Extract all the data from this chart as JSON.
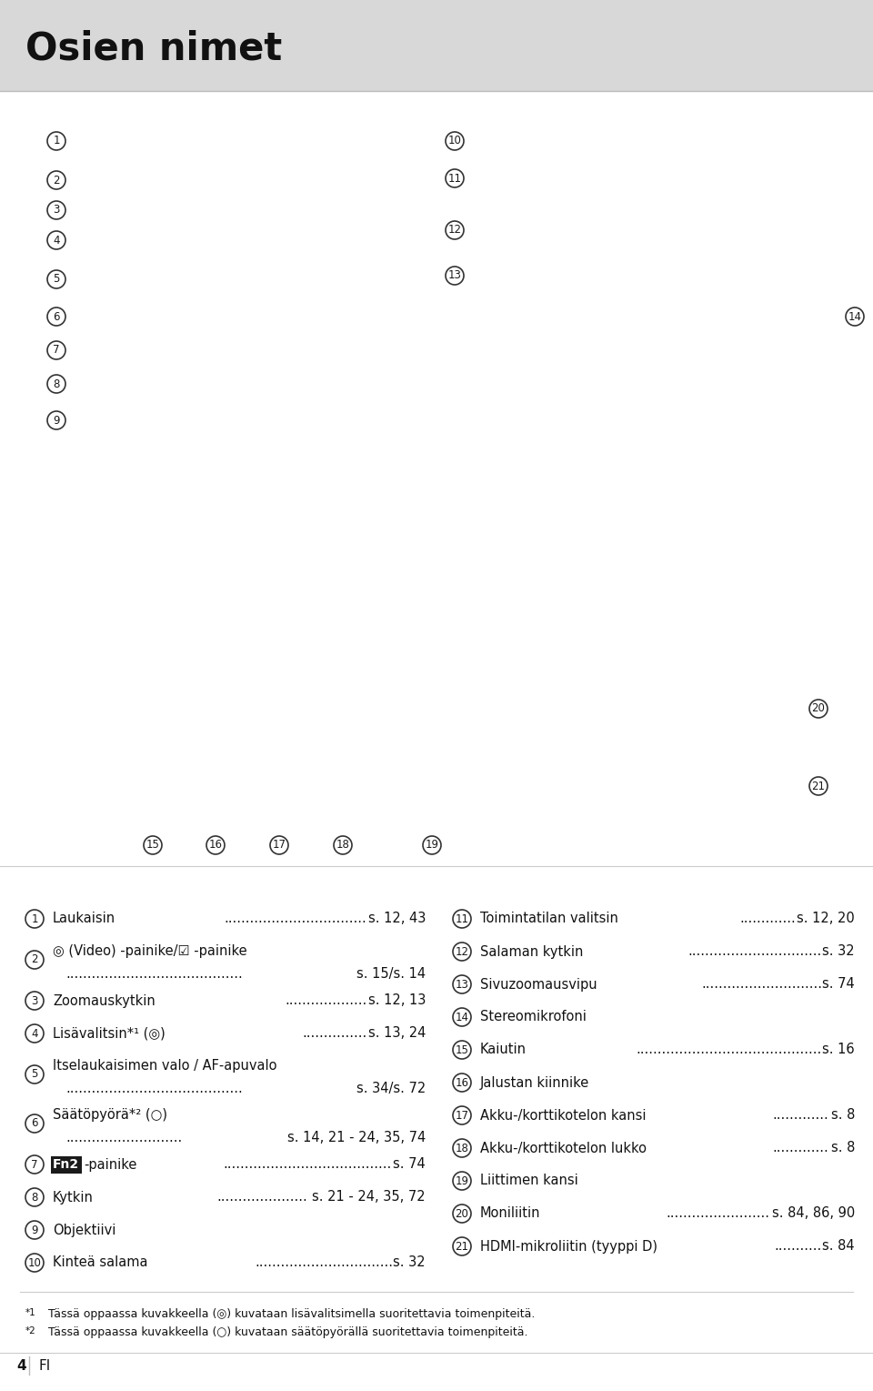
{
  "title": "Osien nimet",
  "title_bg": "#d8d8d8",
  "bg_color": "#ffffff",
  "page_number": "4",
  "page_lang": "FI",
  "left_items": [
    {
      "num": "1",
      "line1": "Laukaisin",
      "dots1": ".................................",
      "page1": "s. 12, 43",
      "line2": null,
      "dots2": null,
      "page2": null
    },
    {
      "num": "2",
      "line1": "◎ (Video) -painike/☑ -painike",
      "dots1": null,
      "page1": null,
      "line2": ".........................................",
      "dots2": null,
      "page2": "s. 15/s. 14"
    },
    {
      "num": "3",
      "line1": "Zoomauskytkin",
      "dots1": "...................",
      "page1": "s. 12, 13",
      "line2": null,
      "dots2": null,
      "page2": null
    },
    {
      "num": "4",
      "line1": "Lisävalitsin*¹ (◎)",
      "dots1": "...............",
      "page1": "s. 13, 24",
      "line2": null,
      "dots2": null,
      "page2": null
    },
    {
      "num": "5",
      "line1": "Itselaukaisimen valo / AF-apuvalo",
      "dots1": null,
      "page1": null,
      "line2": ".........................................",
      "dots2": null,
      "page2": "s. 34/s. 72"
    },
    {
      "num": "6",
      "line1": "Säätöpyörä*² (○)",
      "dots1": null,
      "page1": null,
      "line2": "...........................",
      "dots2": null,
      "page2": "s. 14, 21 - 24, 35, 74"
    },
    {
      "num": "7",
      "line1": "Fn2-painike",
      "dots1": ".......................................",
      "page1": "s. 74",
      "line2": null,
      "dots2": null,
      "page2": null,
      "fn2": true
    },
    {
      "num": "8",
      "line1": "Kytkin",
      "dots1": ".....................",
      "page1": "s. 21 - 24, 35, 72",
      "line2": null,
      "dots2": null,
      "page2": null
    },
    {
      "num": "9",
      "line1": "Objektiivi",
      "dots1": null,
      "page1": null,
      "line2": null,
      "dots2": null,
      "page2": null
    },
    {
      "num": "10",
      "line1": "Kinteä salama",
      "dots1": "................................",
      "page1": "s. 32",
      "line2": null,
      "dots2": null,
      "page2": null
    }
  ],
  "right_items": [
    {
      "num": "11",
      "line1": "Toimintatilan valitsin",
      "dots1": ".............",
      "page1": "s. 12, 20"
    },
    {
      "num": "12",
      "line1": "Salaman kytkin",
      "dots1": "...............................",
      "page1": "s. 32"
    },
    {
      "num": "13",
      "line1": "Sivuzoomausvipu",
      "dots1": "............................",
      "page1": "s. 74"
    },
    {
      "num": "14",
      "line1": "Stereomikrofoni",
      "dots1": null,
      "page1": null
    },
    {
      "num": "15",
      "line1": "Kaiutin",
      "dots1": "...........................................",
      "page1": "s. 16"
    },
    {
      "num": "16",
      "line1": "Jalustan kiinnike",
      "dots1": null,
      "page1": null
    },
    {
      "num": "17",
      "line1": "Akku-/korttikotelon kansi",
      "dots1": ".............",
      "page1": "s. 8"
    },
    {
      "num": "18",
      "line1": "Akku-/korttikotelon lukko",
      "dots1": ".............",
      "page1": "s. 8"
    },
    {
      "num": "19",
      "line1": "Liittimen kansi",
      "dots1": null,
      "page1": null
    },
    {
      "num": "20",
      "line1": "Moniliitin",
      "dots1": "........................",
      "page1": "s. 84, 86, 90"
    },
    {
      "num": "21",
      "line1": "HDMI-mikroliitin (tyyppi D)",
      "dots1": "...........",
      "page1": "s. 84"
    }
  ],
  "footnote1_sup": "*1",
  "footnote1_text": "  Tässä oppaassa kuvakkeella (◎) kuvataan lisävalitsimella suoritettavia toimenpiteitä.",
  "footnote2_sup": "*2",
  "footnote2_text": "  Tässä oppaassa kuvakkeella (○) kuvataan säätöpyörällä suoritettavia toimenpiteitä."
}
